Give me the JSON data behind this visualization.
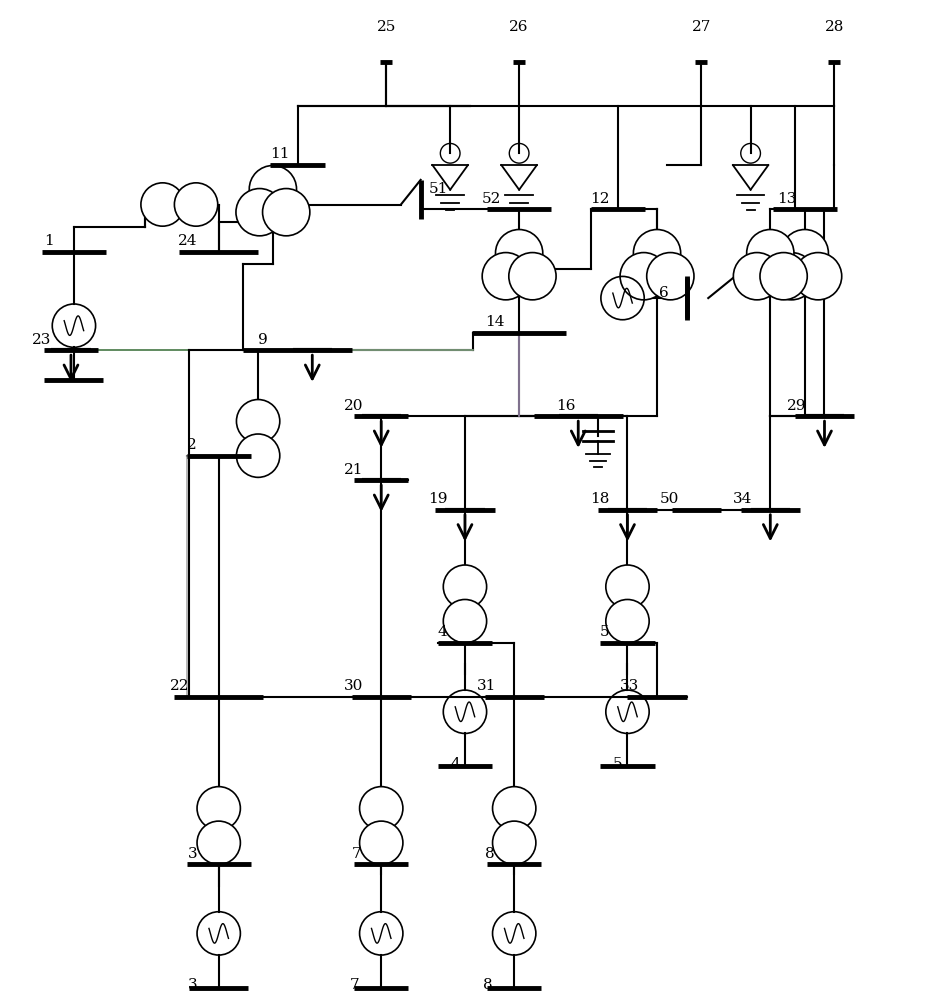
{
  "bg_color": "#ffffff",
  "lw_bus": 3.5,
  "lw_line": 1.5,
  "lw_thin": 1.0,
  "font_size": 11,
  "transformer_r": 0.028
}
